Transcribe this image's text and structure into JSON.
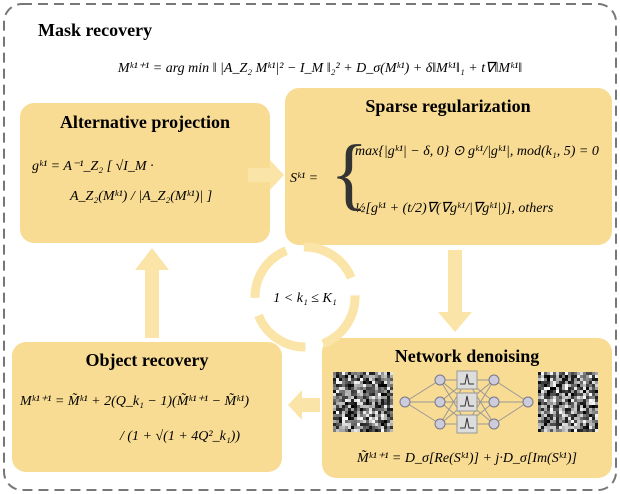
{
  "title": "Mask recovery",
  "main_formula": "Mᵏ¹⁺¹ = arg min ‖ |A_Z₂ Mᵏ¹|² − I_M ‖₂² + D_σ(Mᵏ¹) + δ‖Mᵏ¹‖₁ + t∇‖Mᵏ¹‖",
  "boxes": [
    {
      "title": "Alternative projection",
      "formula": [
        "gᵏ¹ = A⁻¹_Z₂ [ √I_M ·",
        "A_Z₂(Mᵏ¹) / |A_Z₂(Mᵏ¹)| ]"
      ]
    },
    {
      "title": "Sparse regularization",
      "lhs": "Sᵏ¹ =",
      "formula": [
        "max{|gᵏ¹| − δ, 0} ⊙ gᵏ¹/|gᵏ¹|, mod(k₁, 5) = 0",
        "½[gᵏ¹ + (t/2)∇(∇gᵏ¹/|∇gᵏ¹|)],  others"
      ]
    },
    {
      "title": "Network denoising",
      "formula": [
        "M̃ᵏ¹⁺¹ = D_σ[Re(Sᵏ¹)] + j·D_σ[Im(Sᵏ¹)]"
      ]
    },
    {
      "title": "Object recovery",
      "formula": [
        "Mᵏ¹⁺¹ = M̃ᵏ¹ + 2(Q_k₁ − 1)(M̃ᵏ¹⁺¹ − M̃ᵏ¹)",
        "/ (1 + √(1 + 4Q²_k₁))"
      ]
    }
  ],
  "cycle_label": "1 < k₁ ≤ K₁"
}
